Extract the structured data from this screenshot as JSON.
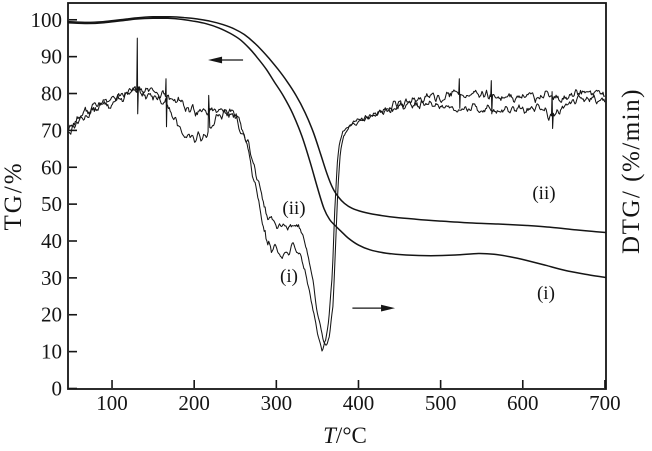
{
  "figure": {
    "background": "#ffffff",
    "line_color": "#151515"
  },
  "axes": {
    "x": {
      "label_main": "T",
      "label_unit": "/°C",
      "ticks": [
        100,
        200,
        300,
        400,
        500,
        600,
        700
      ],
      "range": [
        46.4,
        701.3
      ]
    },
    "y_left": {
      "label": "TG/%",
      "ticks": [
        0,
        10,
        20,
        30,
        40,
        50,
        60,
        70,
        80,
        90,
        100
      ],
      "range": [
        -0.14,
        104.55
      ]
    },
    "y_right": {
      "label": "DTG/ (%/min)"
    }
  },
  "chart_data": {
    "type": "line",
    "title": "",
    "xlabel": "T/°C",
    "ylabel_left": "TG/%",
    "ylabel_right": "DTG/ (%/min)",
    "xlim": [
      46.4,
      701.3
    ],
    "ylim_left": [
      -0.14,
      104.55
    ],
    "grid": false,
    "series": [
      {
        "id": "tg-i",
        "name": "TG (i)",
        "style": "smooth",
        "points": [
          [
            46.5,
            99.2
          ],
          [
            70,
            99.0
          ],
          [
            90,
            99.2
          ],
          [
            110,
            99.7
          ],
          [
            130,
            100.2
          ],
          [
            150,
            100.4
          ],
          [
            168,
            100.4
          ],
          [
            185,
            100.1
          ],
          [
            200,
            99.6
          ],
          [
            215,
            98.9
          ],
          [
            230,
            97.8
          ],
          [
            244,
            96.3
          ],
          [
            256,
            94.6
          ],
          [
            267,
            92.3
          ],
          [
            277,
            89.7
          ],
          [
            288,
            86.5
          ],
          [
            298,
            83.0
          ],
          [
            309,
            79.2
          ],
          [
            320,
            74.5
          ],
          [
            331,
            68.5
          ],
          [
            341,
            61.5
          ],
          [
            350,
            54.5
          ],
          [
            358,
            48.8
          ],
          [
            365,
            45.8
          ],
          [
            372,
            44.1
          ],
          [
            379,
            42.6
          ],
          [
            388,
            40.7
          ],
          [
            400,
            38.9
          ],
          [
            414,
            37.6
          ],
          [
            434,
            36.7
          ],
          [
            458,
            36.2
          ],
          [
            488,
            36.0
          ],
          [
            518,
            36.2
          ],
          [
            546,
            36.6
          ],
          [
            565,
            36.4
          ],
          [
            585,
            35.7
          ],
          [
            605,
            34.7
          ],
          [
            628,
            33.4
          ],
          [
            652,
            32.0
          ],
          [
            676,
            31.0
          ],
          [
            701,
            30.1
          ]
        ]
      },
      {
        "id": "tg-ii",
        "name": "TG (ii)",
        "style": "smooth",
        "points": [
          [
            46.5,
            99.5
          ],
          [
            70,
            99.3
          ],
          [
            90,
            99.5
          ],
          [
            110,
            100.0
          ],
          [
            130,
            100.5
          ],
          [
            150,
            100.8
          ],
          [
            170,
            100.8
          ],
          [
            188,
            100.6
          ],
          [
            204,
            100.2
          ],
          [
            220,
            99.6
          ],
          [
            235,
            98.7
          ],
          [
            249,
            97.5
          ],
          [
            261,
            96.0
          ],
          [
            272,
            94.0
          ],
          [
            282,
            91.8
          ],
          [
            292,
            89.3
          ],
          [
            302,
            86.6
          ],
          [
            313,
            83.3
          ],
          [
            324,
            79.5
          ],
          [
            335,
            74.8
          ],
          [
            345,
            69.5
          ],
          [
            354,
            63.5
          ],
          [
            362,
            58.0
          ],
          [
            369,
            54.2
          ],
          [
            376,
            51.8
          ],
          [
            383,
            50.2
          ],
          [
            392,
            48.9
          ],
          [
            405,
            47.9
          ],
          [
            422,
            47.1
          ],
          [
            445,
            46.4
          ],
          [
            470,
            45.9
          ],
          [
            500,
            45.4
          ],
          [
            535,
            44.9
          ],
          [
            570,
            44.6
          ],
          [
            605,
            44.2
          ],
          [
            635,
            43.7
          ],
          [
            665,
            43.0
          ],
          [
            685,
            42.6
          ],
          [
            701,
            42.3
          ]
        ]
      },
      {
        "id": "dtg-i",
        "name": "DTG (i)",
        "style": "noisy",
        "seed": 13,
        "noise_amp": [
          [
            46,
            1.1
          ],
          [
            120,
            1.0
          ],
          [
            230,
            1.1
          ],
          [
            262,
            1.3
          ],
          [
            292,
            1.1
          ],
          [
            320,
            1.0
          ],
          [
            336,
            0.7
          ],
          [
            352,
            0.45
          ],
          [
            368,
            0.35
          ],
          [
            380,
            0.3
          ],
          [
            395,
            0.5
          ],
          [
            420,
            0.8
          ],
          [
            450,
            1.0
          ],
          [
            701,
            1.0
          ]
        ],
        "spikes": [
          {
            "T": 131,
            "up": 95,
            "down": 74.5
          },
          {
            "T": 218,
            "up": 79.5
          },
          {
            "T": 636,
            "up": 80.5,
            "down": 70.5
          }
        ],
        "points": [
          [
            46.5,
            69.5
          ],
          [
            55,
            71.5
          ],
          [
            65,
            73.5
          ],
          [
            78,
            75.5
          ],
          [
            92,
            77.0
          ],
          [
            106,
            78.0
          ],
          [
            120,
            79.5
          ],
          [
            132,
            80.5
          ],
          [
            142,
            80.0
          ],
          [
            155,
            79.0
          ],
          [
            166,
            77.5
          ],
          [
            174,
            73.5
          ],
          [
            182,
            70.5
          ],
          [
            192,
            68.5
          ],
          [
            202,
            67.5
          ],
          [
            212,
            69.0
          ],
          [
            220,
            71.0
          ],
          [
            230,
            73.5
          ],
          [
            240,
            74.5
          ],
          [
            250,
            73.5
          ],
          [
            258,
            70.5
          ],
          [
            266,
            64.0
          ],
          [
            274,
            55.0
          ],
          [
            281,
            46.5
          ],
          [
            288,
            40.5
          ],
          [
            296,
            38.0
          ],
          [
            305,
            37.0
          ],
          [
            313,
            36.5
          ],
          [
            320,
            38.2
          ],
          [
            326,
            37.5
          ],
          [
            332,
            34.5
          ],
          [
            339,
            28.0
          ],
          [
            346,
            20.0
          ],
          [
            352,
            13.0
          ],
          [
            356,
            10.5
          ],
          [
            360,
            13.0
          ],
          [
            364,
            19.0
          ],
          [
            368,
            30.0
          ],
          [
            371,
            48.0
          ],
          [
            374,
            61.0
          ],
          [
            377,
            66.5
          ],
          [
            381,
            69.5
          ],
          [
            388,
            71.5
          ],
          [
            398,
            72.5
          ],
          [
            412,
            73.5
          ],
          [
            428,
            75.0
          ],
          [
            448,
            76.5
          ],
          [
            468,
            77.0
          ],
          [
            490,
            77.0
          ],
          [
            512,
            76.5
          ],
          [
            535,
            76.0
          ],
          [
            558,
            75.8
          ],
          [
            580,
            75.5
          ],
          [
            600,
            75.5
          ],
          [
            622,
            76.0
          ],
          [
            636,
            73.8
          ],
          [
            648,
            76.0
          ],
          [
            662,
            78.0
          ],
          [
            680,
            79.0
          ],
          [
            701,
            78.5
          ]
        ]
      },
      {
        "id": "dtg-ii",
        "name": "DTG (ii)",
        "style": "noisy",
        "seed": 77,
        "noise_amp": [
          [
            46,
            1.1
          ],
          [
            120,
            1.0
          ],
          [
            230,
            1.1
          ],
          [
            262,
            1.3
          ],
          [
            292,
            1.1
          ],
          [
            320,
            1.0
          ],
          [
            336,
            0.7
          ],
          [
            352,
            0.45
          ],
          [
            368,
            0.35
          ],
          [
            380,
            0.3
          ],
          [
            395,
            0.5
          ],
          [
            420,
            0.8
          ],
          [
            450,
            1.0
          ],
          [
            701,
            1.0
          ]
        ],
        "spikes": [
          {
            "T": 166,
            "up": 84,
            "down": 71
          },
          {
            "T": 523,
            "up": 84,
            "down": 76
          },
          {
            "T": 562,
            "up": 83.5,
            "down": 74.5
          }
        ],
        "points": [
          [
            46.5,
            70.5
          ],
          [
            55,
            72.5
          ],
          [
            65,
            74.5
          ],
          [
            78,
            76.5
          ],
          [
            92,
            77.8
          ],
          [
            106,
            78.8
          ],
          [
            120,
            80.2
          ],
          [
            132,
            81.5
          ],
          [
            142,
            80.8
          ],
          [
            155,
            80.0
          ],
          [
            168,
            79.0
          ],
          [
            180,
            77.8
          ],
          [
            192,
            76.2
          ],
          [
            203,
            74.8
          ],
          [
            214,
            75.0
          ],
          [
            226,
            75.8
          ],
          [
            238,
            75.5
          ],
          [
            248,
            74.5
          ],
          [
            257,
            72.0
          ],
          [
            265,
            67.5
          ],
          [
            273,
            60.0
          ],
          [
            281,
            52.0
          ],
          [
            289,
            47.0
          ],
          [
            297,
            44.8
          ],
          [
            306,
            43.8
          ],
          [
            314,
            43.6
          ],
          [
            321,
            45.0
          ],
          [
            327,
            44.2
          ],
          [
            333,
            41.0
          ],
          [
            339,
            35.5
          ],
          [
            345,
            28.0
          ],
          [
            351,
            19.5
          ],
          [
            357,
            13.0
          ],
          [
            361,
            11.5
          ],
          [
            365,
            14.5
          ],
          [
            369,
            23.0
          ],
          [
            372,
            38.0
          ],
          [
            375,
            55.0
          ],
          [
            378,
            64.5
          ],
          [
            382,
            68.5
          ],
          [
            390,
            71.0
          ],
          [
            400,
            72.3
          ],
          [
            415,
            73.8
          ],
          [
            432,
            75.5
          ],
          [
            452,
            77.2
          ],
          [
            472,
            78.3
          ],
          [
            495,
            79.0
          ],
          [
            520,
            79.8
          ],
          [
            545,
            79.5
          ],
          [
            568,
            79.0
          ],
          [
            590,
            78.8
          ],
          [
            612,
            79.3
          ],
          [
            633,
            78.8
          ],
          [
            650,
            79.0
          ],
          [
            668,
            79.8
          ],
          [
            685,
            80.2
          ],
          [
            701,
            79.6
          ]
        ]
      }
    ],
    "annotations": {
      "labels": [
        {
          "id": "dtg-ii-label",
          "text": "(ii)",
          "T": 321.5,
          "v": 48.7
        },
        {
          "id": "dtg-i-label",
          "text": "(i)",
          "T": 315.4,
          "v": 30.2
        },
        {
          "id": "tg-ii-label",
          "text": "(ii)",
          "T": 625.8,
          "v": 52.8
        },
        {
          "id": "tg-i-label",
          "text": "(i)",
          "T": 628.2,
          "v": 25.6
        }
      ],
      "arrows": [
        {
          "id": "tg-arrow",
          "dir": "left",
          "T_tail": 259.5,
          "T_tip": 216.9,
          "v": 89.1
        },
        {
          "id": "dtg-arrow",
          "dir": "right",
          "T_tail": 392.6,
          "T_tip": 444.5,
          "v": 21.8
        }
      ]
    }
  }
}
